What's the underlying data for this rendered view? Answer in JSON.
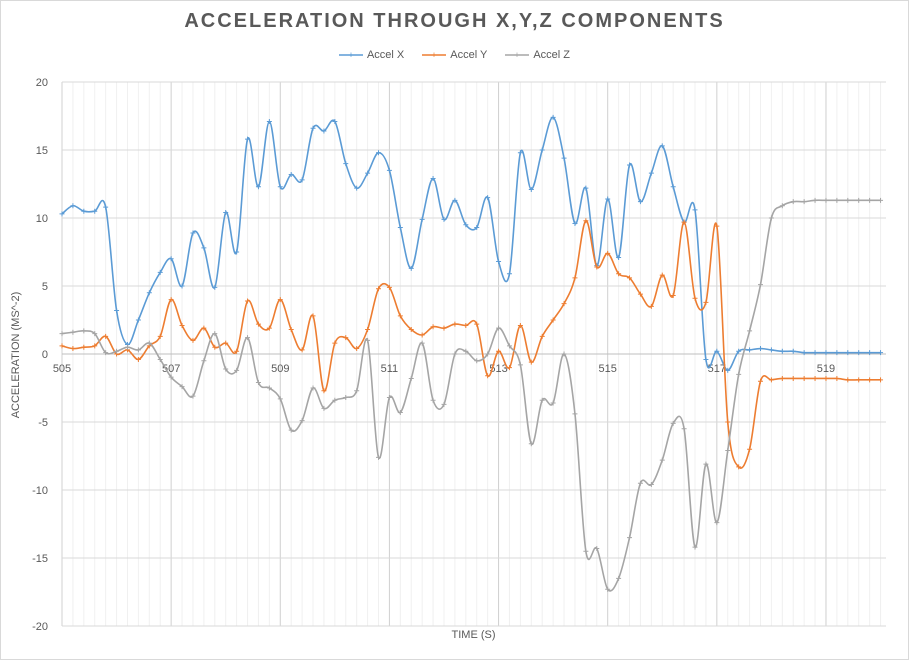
{
  "chart_data": {
    "type": "line",
    "title": "ACCELERATION THROUGH X,Y,Z COMPONENTS",
    "xlabel": "TIME (S)",
    "ylabel": "ACCELERATION (MS^-2)",
    "xlim": [
      505,
      520.1
    ],
    "ylim": [
      -20,
      20
    ],
    "y_ticks": [
      -20,
      -15,
      -10,
      -5,
      0,
      5,
      10,
      15,
      20
    ],
    "x_ticks": [
      505,
      507,
      509,
      511,
      513,
      515,
      517,
      519
    ],
    "grid": true,
    "legend_position": "top",
    "series": [
      {
        "name": "Accel X",
        "color": "#5b9bd5",
        "points": [
          [
            505.0,
            10.3
          ],
          [
            505.2,
            10.9
          ],
          [
            505.4,
            10.5
          ],
          [
            505.6,
            10.5
          ],
          [
            505.8,
            10.8
          ],
          [
            506.0,
            3.2
          ],
          [
            506.2,
            0.7
          ],
          [
            506.4,
            2.5
          ],
          [
            506.6,
            4.5
          ],
          [
            506.8,
            6.0
          ],
          [
            507.0,
            7.0
          ],
          [
            507.2,
            5.0
          ],
          [
            507.4,
            8.9
          ],
          [
            507.6,
            7.8
          ],
          [
            507.8,
            4.9
          ],
          [
            508.0,
            10.4
          ],
          [
            508.2,
            7.5
          ],
          [
            508.4,
            15.8
          ],
          [
            508.6,
            12.3
          ],
          [
            508.8,
            17.1
          ],
          [
            509.0,
            12.3
          ],
          [
            509.2,
            13.2
          ],
          [
            509.4,
            12.8
          ],
          [
            509.6,
            16.6
          ],
          [
            509.8,
            16.4
          ],
          [
            510.0,
            17.1
          ],
          [
            510.2,
            14.0
          ],
          [
            510.4,
            12.2
          ],
          [
            510.6,
            13.3
          ],
          [
            510.8,
            14.8
          ],
          [
            511.0,
            13.5
          ],
          [
            511.2,
            9.3
          ],
          [
            511.4,
            6.3
          ],
          [
            511.6,
            9.9
          ],
          [
            511.8,
            12.9
          ],
          [
            512.0,
            9.9
          ],
          [
            512.2,
            11.3
          ],
          [
            512.4,
            9.5
          ],
          [
            512.6,
            9.3
          ],
          [
            512.8,
            11.5
          ],
          [
            513.0,
            6.8
          ],
          [
            513.2,
            5.9
          ],
          [
            513.4,
            14.8
          ],
          [
            513.6,
            12.1
          ],
          [
            513.8,
            15.0
          ],
          [
            514.0,
            17.4
          ],
          [
            514.2,
            14.4
          ],
          [
            514.4,
            9.6
          ],
          [
            514.6,
            12.2
          ],
          [
            514.8,
            6.5
          ],
          [
            515.0,
            11.4
          ],
          [
            515.2,
            7.1
          ],
          [
            515.4,
            13.9
          ],
          [
            515.6,
            11.2
          ],
          [
            515.8,
            13.3
          ],
          [
            516.0,
            15.3
          ],
          [
            516.2,
            12.3
          ],
          [
            516.4,
            9.7
          ],
          [
            516.6,
            10.6
          ],
          [
            516.8,
            -0.4
          ],
          [
            517.0,
            0.2
          ],
          [
            517.2,
            -1.2
          ],
          [
            517.4,
            0.2
          ],
          [
            517.6,
            0.3
          ],
          [
            517.8,
            0.4
          ],
          [
            518.0,
            0.3
          ],
          [
            518.2,
            0.2
          ],
          [
            518.4,
            0.2
          ],
          [
            518.6,
            0.1
          ],
          [
            518.8,
            0.1
          ],
          [
            519.0,
            0.1
          ],
          [
            519.2,
            0.1
          ],
          [
            519.4,
            0.1
          ],
          [
            519.6,
            0.1
          ],
          [
            519.8,
            0.1
          ],
          [
            520.0,
            0.1
          ]
        ]
      },
      {
        "name": "Accel Y",
        "color": "#ed7d31",
        "points": [
          [
            505.0,
            0.6
          ],
          [
            505.2,
            0.4
          ],
          [
            505.4,
            0.5
          ],
          [
            505.6,
            0.6
          ],
          [
            505.8,
            1.3
          ],
          [
            506.0,
            0.0
          ],
          [
            506.2,
            0.3
          ],
          [
            506.4,
            -0.4
          ],
          [
            506.6,
            0.6
          ],
          [
            506.8,
            1.3
          ],
          [
            507.0,
            4.0
          ],
          [
            507.2,
            2.1
          ],
          [
            507.4,
            1.0
          ],
          [
            507.6,
            1.9
          ],
          [
            507.8,
            0.5
          ],
          [
            508.0,
            0.8
          ],
          [
            508.2,
            0.2
          ],
          [
            508.4,
            3.9
          ],
          [
            508.6,
            2.2
          ],
          [
            508.8,
            1.9
          ],
          [
            509.0,
            4.0
          ],
          [
            509.2,
            1.8
          ],
          [
            509.4,
            0.3
          ],
          [
            509.6,
            2.8
          ],
          [
            509.8,
            -2.7
          ],
          [
            510.0,
            0.8
          ],
          [
            510.2,
            1.2
          ],
          [
            510.4,
            0.4
          ],
          [
            510.6,
            1.8
          ],
          [
            510.8,
            4.8
          ],
          [
            511.0,
            4.9
          ],
          [
            511.2,
            2.8
          ],
          [
            511.4,
            1.8
          ],
          [
            511.6,
            1.4
          ],
          [
            511.8,
            2.0
          ],
          [
            512.0,
            1.9
          ],
          [
            512.2,
            2.2
          ],
          [
            512.4,
            2.1
          ],
          [
            512.6,
            2.2
          ],
          [
            512.8,
            -1.6
          ],
          [
            513.0,
            0.2
          ],
          [
            513.2,
            -1.0
          ],
          [
            513.4,
            2.1
          ],
          [
            513.6,
            -0.6
          ],
          [
            513.8,
            1.3
          ],
          [
            514.0,
            2.5
          ],
          [
            514.2,
            3.7
          ],
          [
            514.4,
            5.6
          ],
          [
            514.6,
            9.8
          ],
          [
            514.8,
            6.4
          ],
          [
            515.0,
            7.4
          ],
          [
            515.2,
            5.9
          ],
          [
            515.4,
            5.6
          ],
          [
            515.6,
            4.4
          ],
          [
            515.8,
            3.5
          ],
          [
            516.0,
            5.8
          ],
          [
            516.2,
            4.3
          ],
          [
            516.4,
            9.7
          ],
          [
            516.6,
            4.1
          ],
          [
            516.8,
            3.8
          ],
          [
            517.0,
            9.4
          ],
          [
            517.2,
            -5.0
          ],
          [
            517.4,
            -8.3
          ],
          [
            517.6,
            -7.0
          ],
          [
            517.8,
            -2.0
          ],
          [
            518.0,
            -1.9
          ],
          [
            518.2,
            -1.8
          ],
          [
            518.4,
            -1.8
          ],
          [
            518.6,
            -1.8
          ],
          [
            518.8,
            -1.8
          ],
          [
            519.0,
            -1.8
          ],
          [
            519.2,
            -1.8
          ],
          [
            519.4,
            -1.9
          ],
          [
            519.6,
            -1.9
          ],
          [
            519.8,
            -1.9
          ],
          [
            520.0,
            -1.9
          ]
        ]
      },
      {
        "name": "Accel Z",
        "color": "#a5a5a5",
        "points": [
          [
            505.0,
            1.5
          ],
          [
            505.2,
            1.6
          ],
          [
            505.4,
            1.7
          ],
          [
            505.6,
            1.5
          ],
          [
            505.8,
            0.1
          ],
          [
            506.0,
            0.2
          ],
          [
            506.2,
            0.5
          ],
          [
            506.4,
            0.3
          ],
          [
            506.6,
            0.8
          ],
          [
            506.8,
            -0.4
          ],
          [
            507.0,
            -1.7
          ],
          [
            507.2,
            -2.4
          ],
          [
            507.4,
            -3.1
          ],
          [
            507.6,
            -0.5
          ],
          [
            507.8,
            1.5
          ],
          [
            508.0,
            -1.1
          ],
          [
            508.2,
            -1.2
          ],
          [
            508.4,
            1.2
          ],
          [
            508.6,
            -2.1
          ],
          [
            508.8,
            -2.5
          ],
          [
            509.0,
            -3.3
          ],
          [
            509.2,
            -5.6
          ],
          [
            509.4,
            -4.9
          ],
          [
            509.6,
            -2.5
          ],
          [
            509.8,
            -4.0
          ],
          [
            510.0,
            -3.4
          ],
          [
            510.2,
            -3.2
          ],
          [
            510.4,
            -2.7
          ],
          [
            510.6,
            1.0
          ],
          [
            510.8,
            -7.6
          ],
          [
            511.0,
            -3.2
          ],
          [
            511.2,
            -4.3
          ],
          [
            511.4,
            -1.8
          ],
          [
            511.6,
            0.8
          ],
          [
            511.8,
            -3.4
          ],
          [
            512.0,
            -3.7
          ],
          [
            512.2,
            0.0
          ],
          [
            512.4,
            0.2
          ],
          [
            512.6,
            -0.5
          ],
          [
            512.8,
            0.0
          ],
          [
            513.0,
            1.9
          ],
          [
            513.2,
            0.6
          ],
          [
            513.4,
            -0.8
          ],
          [
            513.6,
            -6.6
          ],
          [
            513.8,
            -3.4
          ],
          [
            514.0,
            -3.6
          ],
          [
            514.2,
            0.0
          ],
          [
            514.4,
            -4.4
          ],
          [
            514.6,
            -14.5
          ],
          [
            514.8,
            -14.3
          ],
          [
            515.0,
            -17.3
          ],
          [
            515.2,
            -16.5
          ],
          [
            515.4,
            -13.5
          ],
          [
            515.6,
            -9.5
          ],
          [
            515.8,
            -9.6
          ],
          [
            516.0,
            -7.8
          ],
          [
            516.2,
            -5.1
          ],
          [
            516.4,
            -5.5
          ],
          [
            516.6,
            -14.2
          ],
          [
            516.8,
            -8.1
          ],
          [
            517.0,
            -12.4
          ],
          [
            517.2,
            -7.1
          ],
          [
            517.4,
            -1.5
          ],
          [
            517.6,
            1.7
          ],
          [
            517.8,
            5.1
          ],
          [
            518.0,
            10.0
          ],
          [
            518.2,
            10.9
          ],
          [
            518.4,
            11.2
          ],
          [
            518.6,
            11.2
          ],
          [
            518.8,
            11.3
          ],
          [
            519.0,
            11.3
          ],
          [
            519.2,
            11.3
          ],
          [
            519.4,
            11.3
          ],
          [
            519.6,
            11.3
          ],
          [
            519.8,
            11.3
          ],
          [
            520.0,
            11.3
          ]
        ]
      }
    ]
  }
}
